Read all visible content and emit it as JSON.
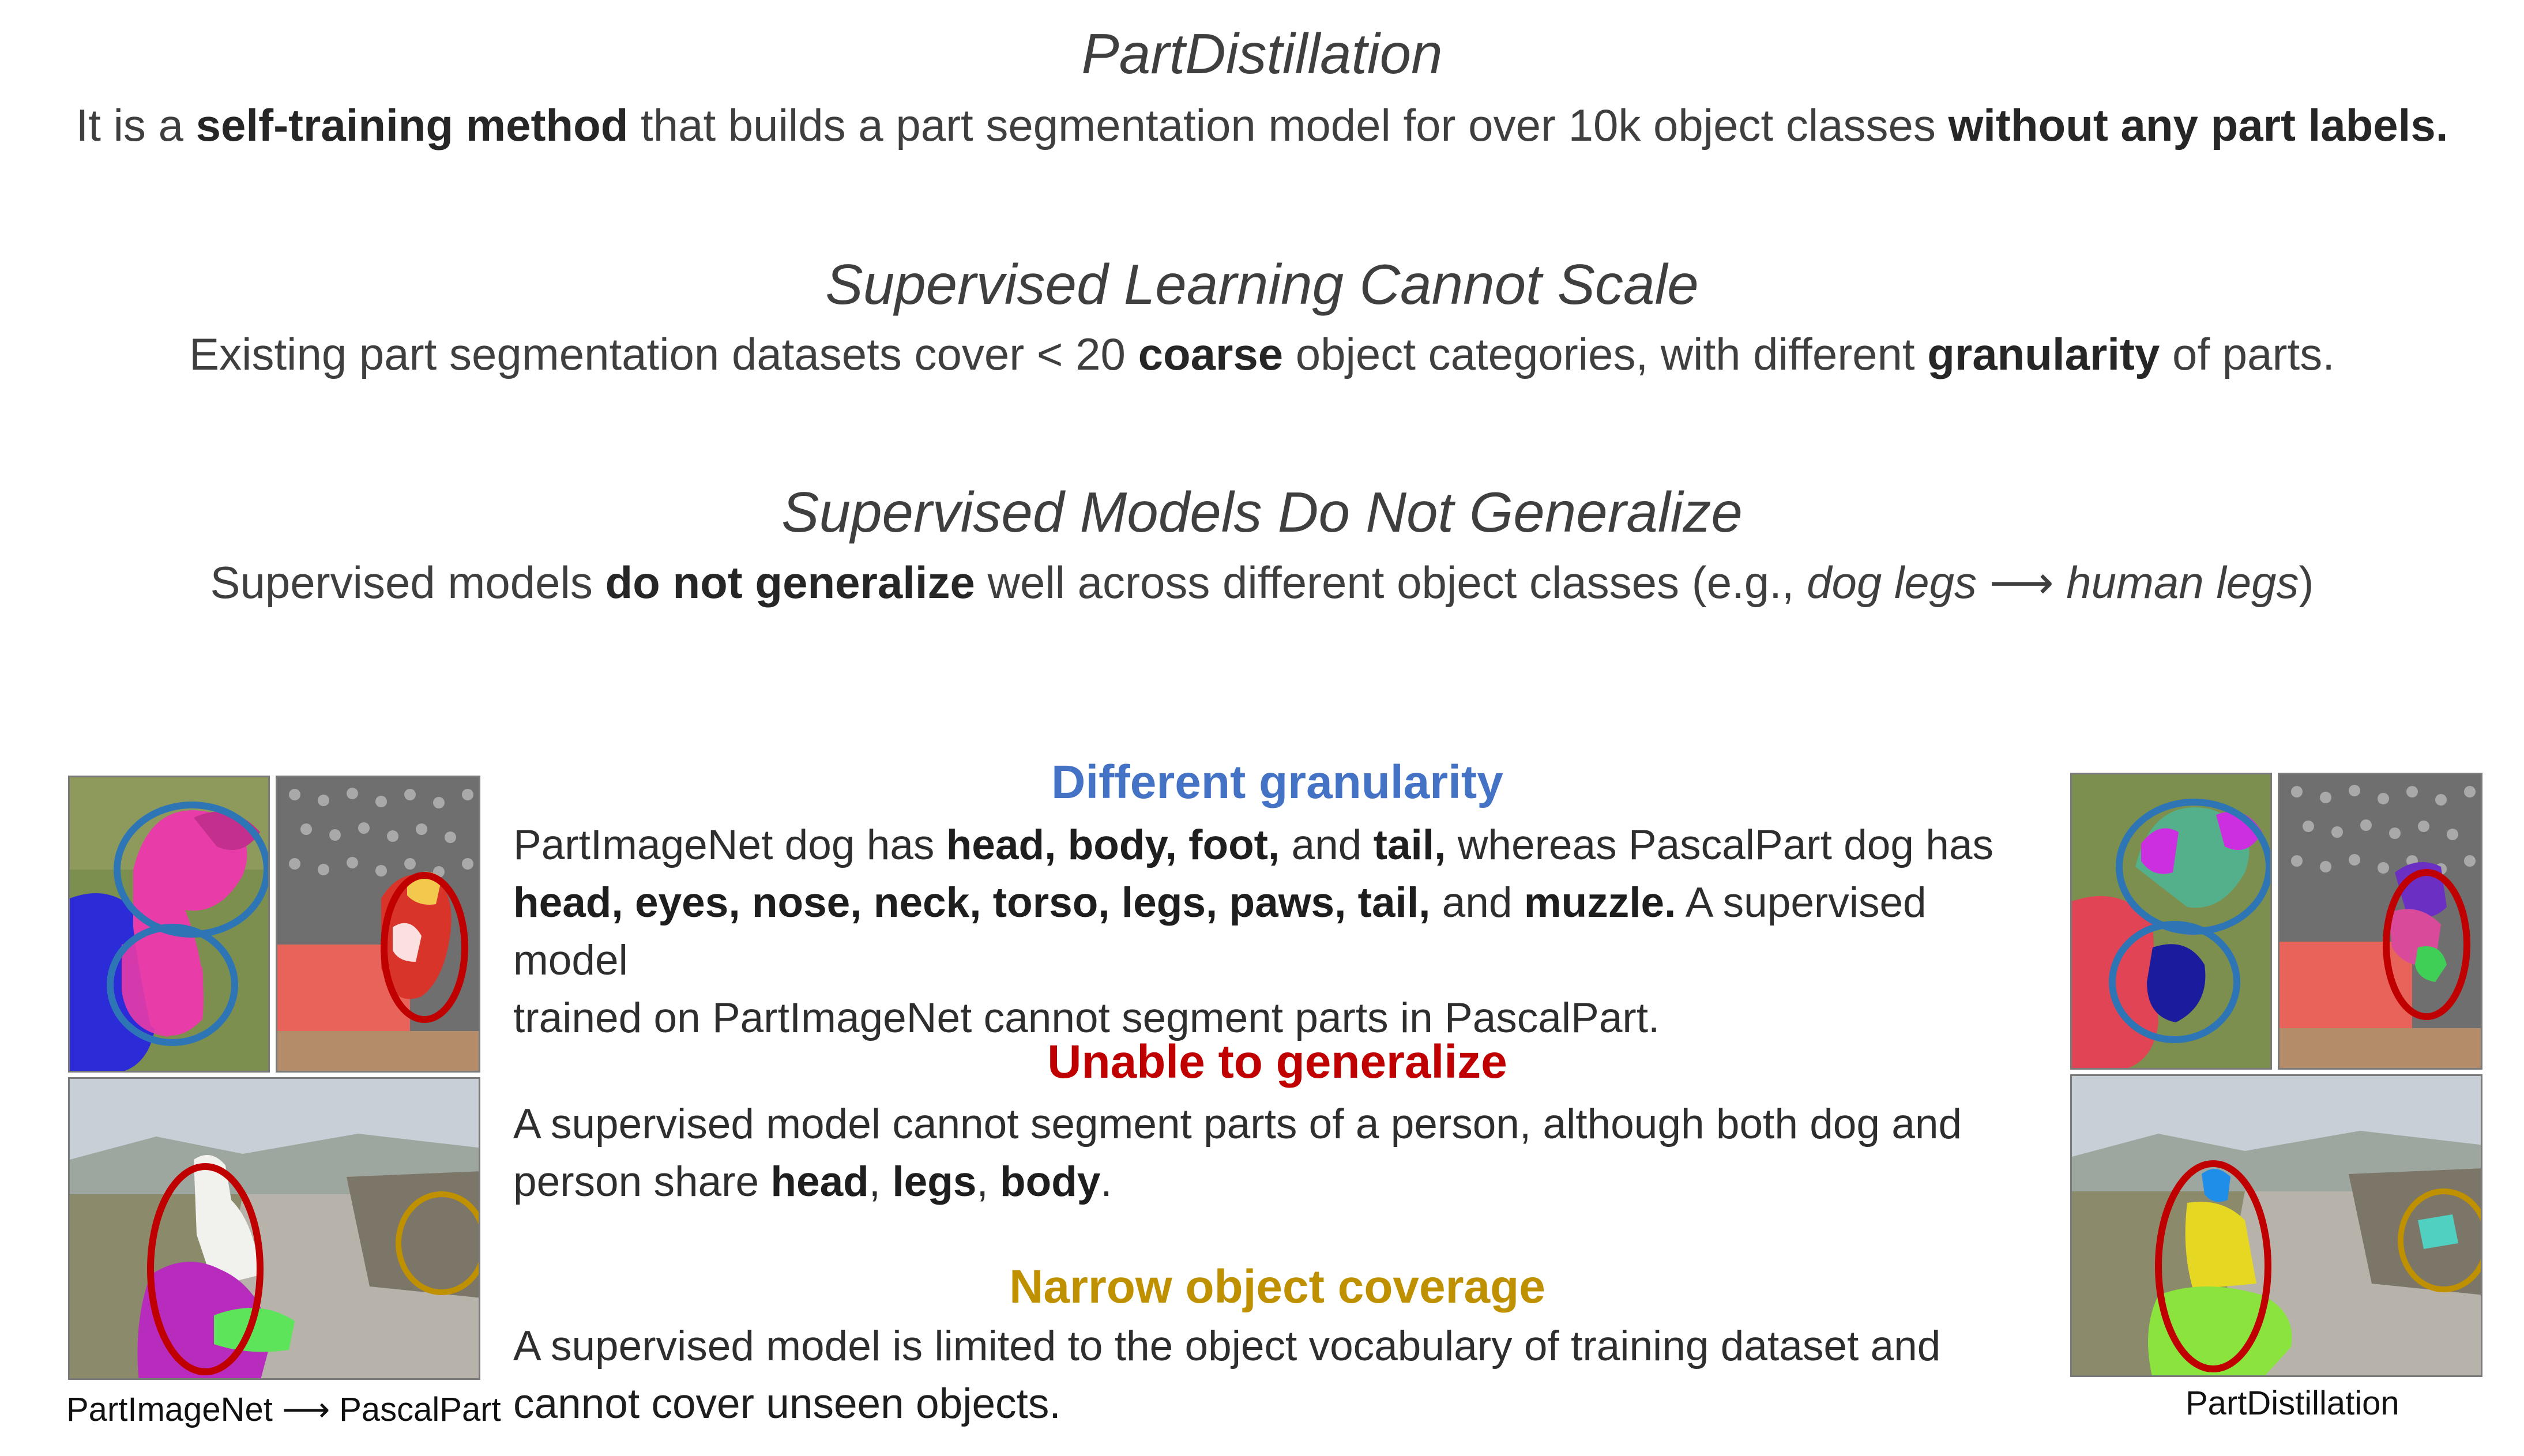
{
  "intro": {
    "title": "PartDistillation",
    "line_a": "It is a ",
    "line_b": "self-training method",
    "line_c": " that builds a part segmentation model for over 10k object classes ",
    "line_d": "without any part labels."
  },
  "scale": {
    "title": "Supervised Learning Cannot Scale",
    "line_a": "Existing part segmentation datasets cover < 20 ",
    "line_b": "coarse",
    "line_c": " object categories, with different ",
    "line_d": "granularity",
    "line_e": " of parts."
  },
  "generalize": {
    "title": "Supervised Models Do Not Generalize",
    "line_a": "Supervised models ",
    "line_b": "do not generalize",
    "line_c": " well across different object classes (e.g., ",
    "line_d": "dog legs",
    "line_e": " ⟶ ",
    "line_f": "human legs",
    "line_g": ")"
  },
  "granularity": {
    "title": "Different granularity",
    "p1": "PartImageNet dog has ",
    "p2": "head, body, foot,",
    "p3": " and ",
    "p4": "tail,",
    "p5": " whereas PascalPart dog has",
    "p6": "head, eyes, nose, neck, torso, legs, paws, tail,",
    "p7": " and ",
    "p8": "muzzle.",
    "p9": " A supervised model",
    "p10": "trained on PartImageNet cannot segment parts in PascalPart."
  },
  "unable": {
    "title": "Unable to generalize",
    "p1": "A supervised model cannot segment parts of a person, although both dog and",
    "p2": "person share ",
    "p3": "head",
    "p4": ", ",
    "p5": "legs",
    "p6": ", ",
    "p7": "body",
    "p8": "."
  },
  "narrow": {
    "title": "Narrow object coverage",
    "p1": "A supervised model is limited to the object vocabulary of training dataset and",
    "p2": "cannot cover unseen objects."
  },
  "captions": {
    "left": "PartImageNet ⟶ PascalPart",
    "right": "PartDistillation"
  },
  "colors": {
    "blue": "#4472c4",
    "red": "#c00000",
    "gold": "#bf9000"
  }
}
